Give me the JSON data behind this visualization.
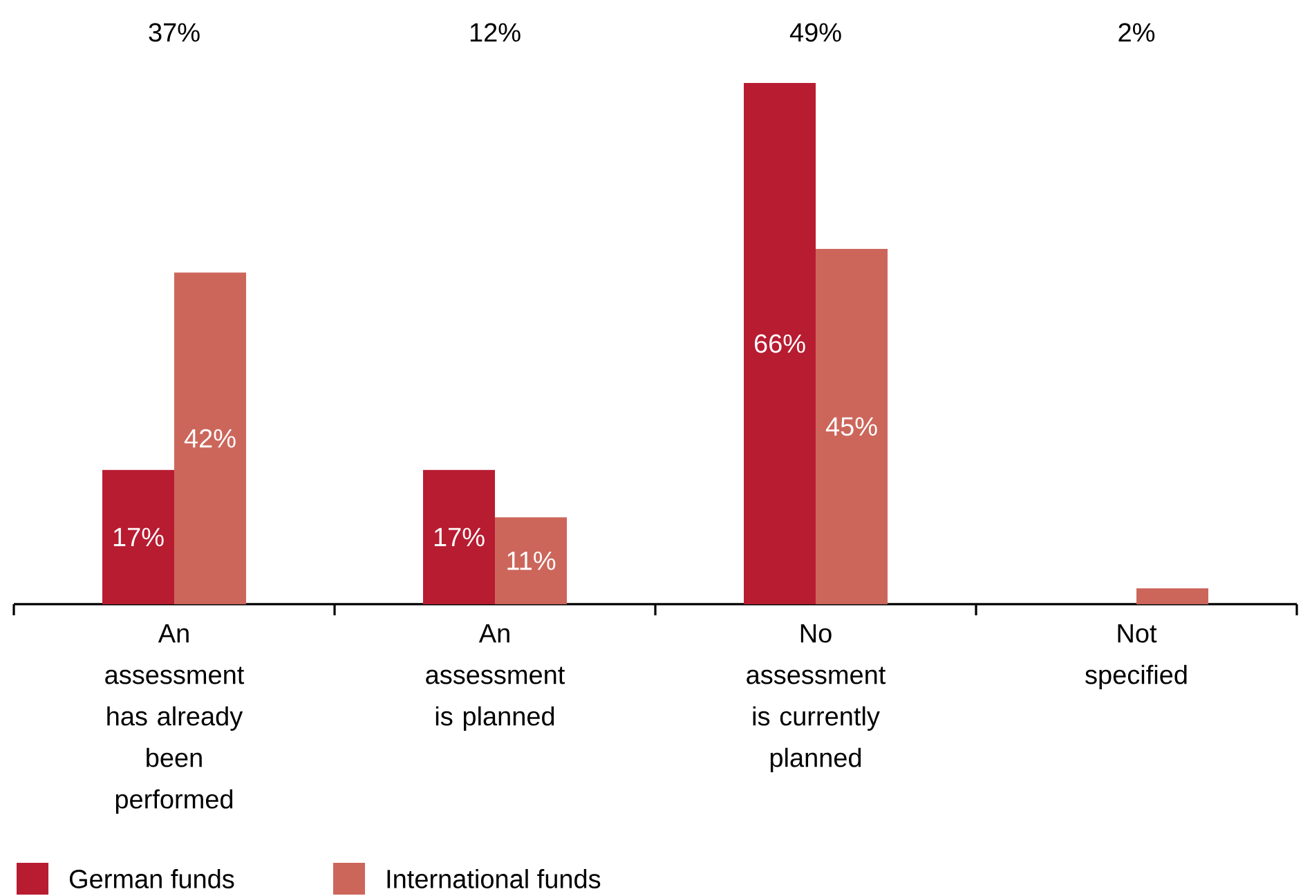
{
  "chart_data": {
    "type": "bar",
    "categories": [
      "An assessment has already been performed",
      "An assessment is planned",
      "No assessment is currently planned",
      "Not specified"
    ],
    "series": [
      {
        "name": "German funds",
        "color": "#b81c31",
        "values": [
          17,
          17,
          66,
          null
        ],
        "value_labels": [
          "17%",
          "17%",
          "66%",
          null
        ]
      },
      {
        "name": "International funds",
        "color": "#cc665b",
        "values": [
          42,
          11,
          45,
          2
        ],
        "value_labels": [
          "42%",
          "11%",
          "45%",
          null
        ]
      }
    ],
    "annotations": [
      "37%",
      "12%",
      "49%",
      "2%"
    ],
    "legend": "bottom"
  }
}
